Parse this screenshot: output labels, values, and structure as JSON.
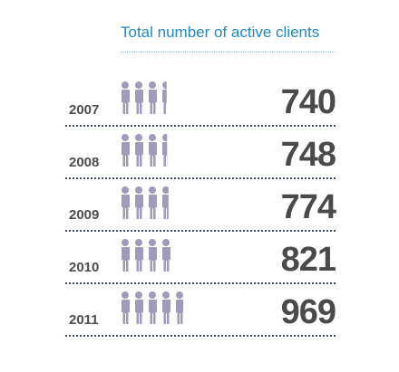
{
  "chart_data": {
    "type": "bar",
    "title": "Total number of active clients",
    "categories": [
      "2007",
      "2008",
      "2009",
      "2010",
      "2011"
    ],
    "values": [
      740,
      748,
      774,
      821,
      969
    ],
    "value_labels": [
      "740",
      "748",
      "774",
      "821",
      "969"
    ],
    "xlabel": "",
    "ylabel": "",
    "grid": false
  },
  "colors": {
    "title": "#1e88c8",
    "figure": "#9f9bbd",
    "text": "#4a4a4a",
    "rule": "#3c4a66"
  },
  "icon": "person-icon"
}
